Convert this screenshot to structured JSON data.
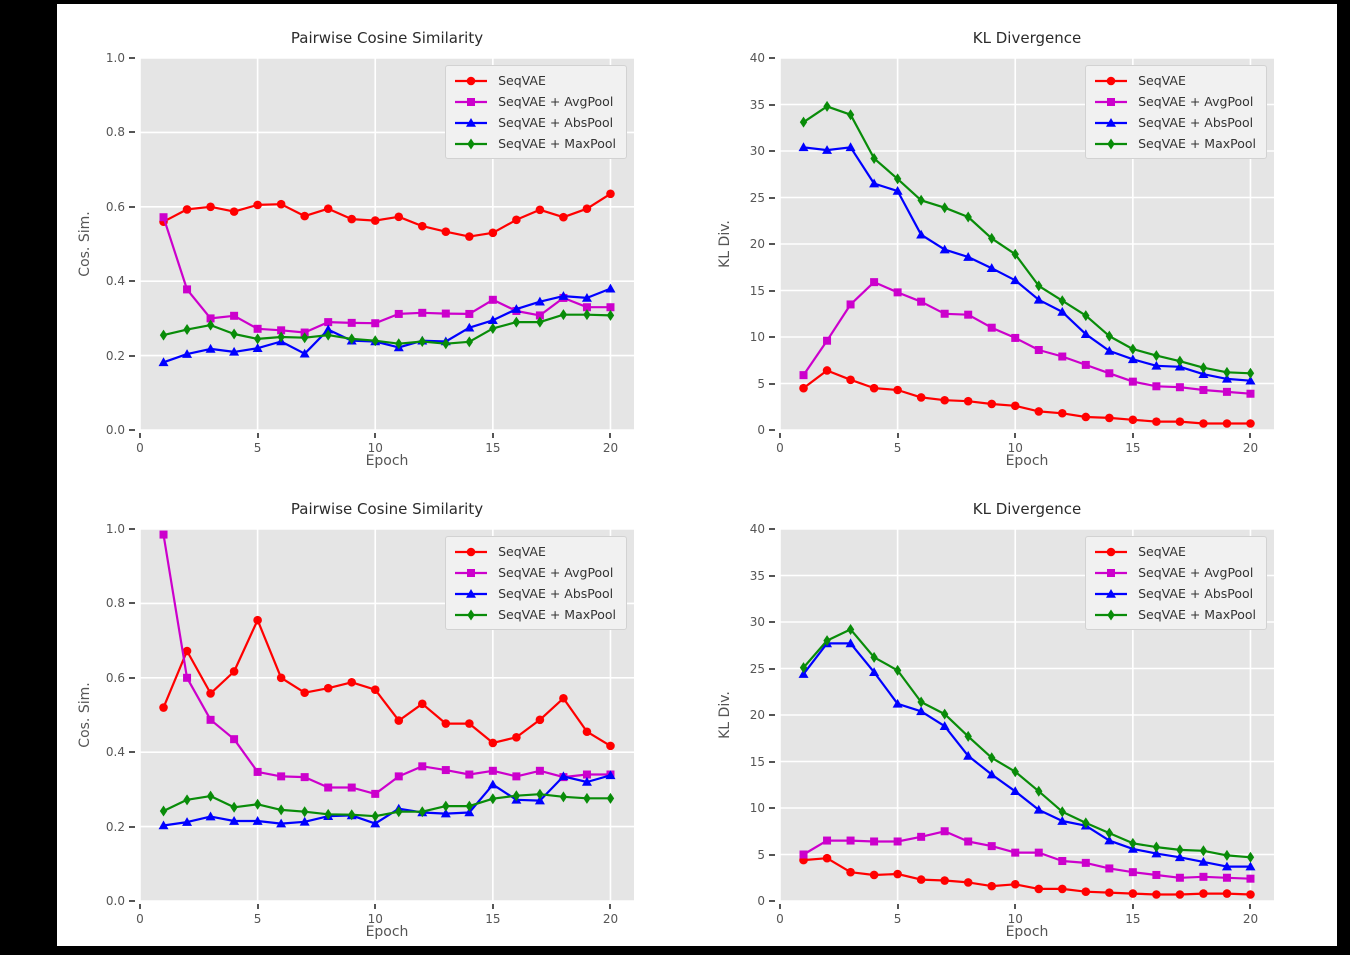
{
  "page": {
    "frame_color": "#000000",
    "canvas_color": "#ffffff",
    "plot_background": "#e5e5e5",
    "grid_color": "#ffffff",
    "tick_color": "#555555",
    "title_color": "#2b2b2b"
  },
  "chart_data": [
    {
      "type": "line",
      "title": "Pairwise Cosine Similarity",
      "xlabel": "Epoch",
      "ylabel": "Cos. Sim.",
      "xlim": [
        0,
        21
      ],
      "ylim": [
        0,
        1.0
      ],
      "grid": true,
      "legend_position": "upper right",
      "xticks": [
        {
          "v": 0,
          "label": "0"
        },
        {
          "v": 5,
          "label": "5"
        },
        {
          "v": 10,
          "label": "10"
        },
        {
          "v": 15,
          "label": "15"
        },
        {
          "v": 20,
          "label": "20"
        }
      ],
      "yticks": [
        {
          "v": 0,
          "label": "0.0"
        },
        {
          "v": 0.2,
          "label": "0.2"
        },
        {
          "v": 0.4,
          "label": "0.4"
        },
        {
          "v": 0.6,
          "label": "0.6"
        },
        {
          "v": 0.8,
          "label": "0.8"
        },
        {
          "v": 1.0,
          "label": "1.0"
        }
      ],
      "x": [
        1,
        2,
        3,
        4,
        5,
        6,
        7,
        8,
        9,
        10,
        11,
        12,
        13,
        14,
        15,
        16,
        17,
        18,
        19,
        20
      ],
      "series": [
        {
          "name": "SeqVAE",
          "color": "#ff0000",
          "marker": "circle",
          "values": [
            0.56,
            0.593,
            0.6,
            0.587,
            0.605,
            0.607,
            0.575,
            0.595,
            0.567,
            0.563,
            0.573,
            0.548,
            0.533,
            0.52,
            0.53,
            0.565,
            0.592,
            0.572,
            0.595,
            0.635
          ]
        },
        {
          "name": "SeqVAE + AvgPool",
          "color": "#cc00cc",
          "marker": "square",
          "values": [
            0.572,
            0.378,
            0.3,
            0.307,
            0.272,
            0.268,
            0.262,
            0.29,
            0.288,
            0.287,
            0.312,
            0.315,
            0.313,
            0.312,
            0.35,
            0.32,
            0.308,
            0.355,
            0.33,
            0.33
          ]
        },
        {
          "name": "SeqVAE + AbsPool",
          "color": "#0000ff",
          "marker": "triangle",
          "values": [
            0.182,
            0.204,
            0.218,
            0.21,
            0.22,
            0.238,
            0.205,
            0.27,
            0.24,
            0.238,
            0.222,
            0.24,
            0.238,
            0.275,
            0.295,
            0.325,
            0.345,
            0.36,
            0.355,
            0.38
          ]
        },
        {
          "name": "SeqVAE + MaxPool",
          "color": "#098c09",
          "marker": "diamond",
          "values": [
            0.255,
            0.27,
            0.282,
            0.258,
            0.245,
            0.25,
            0.248,
            0.255,
            0.245,
            0.24,
            0.232,
            0.238,
            0.232,
            0.237,
            0.273,
            0.29,
            0.29,
            0.31,
            0.31,
            0.308
          ]
        }
      ]
    },
    {
      "type": "line",
      "title": "KL Divergence",
      "xlabel": "Epoch",
      "ylabel": "KL Div.",
      "xlim": [
        0,
        21
      ],
      "ylim": [
        0,
        40
      ],
      "grid": true,
      "legend_position": "upper right",
      "xticks": [
        {
          "v": 0,
          "label": "0"
        },
        {
          "v": 5,
          "label": "5"
        },
        {
          "v": 10,
          "label": "10"
        },
        {
          "v": 15,
          "label": "15"
        },
        {
          "v": 20,
          "label": "20"
        }
      ],
      "yticks": [
        {
          "v": 0,
          "label": "0"
        },
        {
          "v": 5,
          "label": "5"
        },
        {
          "v": 10,
          "label": "10"
        },
        {
          "v": 15,
          "label": "15"
        },
        {
          "v": 20,
          "label": "20"
        },
        {
          "v": 25,
          "label": "25"
        },
        {
          "v": 30,
          "label": "30"
        },
        {
          "v": 35,
          "label": "35"
        },
        {
          "v": 40,
          "label": "40"
        }
      ],
      "x": [
        1,
        2,
        3,
        4,
        5,
        6,
        7,
        8,
        9,
        10,
        11,
        12,
        13,
        14,
        15,
        16,
        17,
        18,
        19,
        20
      ],
      "series": [
        {
          "name": "SeqVAE",
          "color": "#ff0000",
          "marker": "circle",
          "values": [
            4.5,
            6.4,
            5.4,
            4.5,
            4.3,
            3.5,
            3.2,
            3.1,
            2.8,
            2.6,
            2.0,
            1.8,
            1.4,
            1.3,
            1.1,
            0.9,
            0.9,
            0.7,
            0.7,
            0.7
          ]
        },
        {
          "name": "SeqVAE + AvgPool",
          "color": "#cc00cc",
          "marker": "square",
          "values": [
            5.9,
            9.6,
            13.5,
            15.9,
            14.8,
            13.8,
            12.5,
            12.4,
            11.0,
            9.9,
            8.6,
            7.9,
            7.0,
            6.1,
            5.2,
            4.7,
            4.6,
            4.3,
            4.1,
            3.9
          ]
        },
        {
          "name": "SeqVAE + AbsPool",
          "color": "#0000ff",
          "marker": "triangle",
          "values": [
            30.4,
            30.1,
            30.4,
            26.5,
            25.7,
            21.0,
            19.4,
            18.6,
            17.4,
            16.1,
            14.0,
            12.7,
            10.3,
            8.5,
            7.6,
            6.9,
            6.8,
            6.0,
            5.5,
            5.3
          ]
        },
        {
          "name": "SeqVAE + MaxPool",
          "color": "#098c09",
          "marker": "diamond",
          "values": [
            33.1,
            34.8,
            33.9,
            29.2,
            27.0,
            24.7,
            23.9,
            22.9,
            20.6,
            18.9,
            15.5,
            13.9,
            12.3,
            10.1,
            8.7,
            8.0,
            7.4,
            6.7,
            6.2,
            6.1
          ]
        }
      ]
    },
    {
      "type": "line",
      "title": "Pairwise Cosine Similarity",
      "xlabel": "Epoch",
      "ylabel": "Cos. Sim.",
      "xlim": [
        0,
        21
      ],
      "ylim": [
        0,
        1.0
      ],
      "grid": true,
      "legend_position": "upper right",
      "xticks": [
        {
          "v": 0,
          "label": "0"
        },
        {
          "v": 5,
          "label": "5"
        },
        {
          "v": 10,
          "label": "10"
        },
        {
          "v": 15,
          "label": "15"
        },
        {
          "v": 20,
          "label": "20"
        }
      ],
      "yticks": [
        {
          "v": 0,
          "label": "0.0"
        },
        {
          "v": 0.2,
          "label": "0.2"
        },
        {
          "v": 0.4,
          "label": "0.4"
        },
        {
          "v": 0.6,
          "label": "0.6"
        },
        {
          "v": 0.8,
          "label": "0.8"
        },
        {
          "v": 1.0,
          "label": "1.0"
        }
      ],
      "x": [
        1,
        2,
        3,
        4,
        5,
        6,
        7,
        8,
        9,
        10,
        11,
        12,
        13,
        14,
        15,
        16,
        17,
        18,
        19,
        20
      ],
      "series": [
        {
          "name": "SeqVAE",
          "color": "#ff0000",
          "marker": "circle",
          "values": [
            0.52,
            0.672,
            0.558,
            0.617,
            0.755,
            0.6,
            0.56,
            0.572,
            0.588,
            0.568,
            0.485,
            0.53,
            0.477,
            0.477,
            0.425,
            0.44,
            0.487,
            0.545,
            0.455,
            0.417
          ]
        },
        {
          "name": "SeqVAE + AvgPool",
          "color": "#cc00cc",
          "marker": "square",
          "values": [
            0.985,
            0.6,
            0.487,
            0.435,
            0.347,
            0.335,
            0.333,
            0.305,
            0.305,
            0.288,
            0.335,
            0.362,
            0.352,
            0.34,
            0.35,
            0.335,
            0.35,
            0.333,
            0.34,
            0.34
          ]
        },
        {
          "name": "SeqVAE + AbsPool",
          "color": "#0000ff",
          "marker": "triangle",
          "values": [
            0.203,
            0.212,
            0.227,
            0.215,
            0.215,
            0.208,
            0.213,
            0.228,
            0.23,
            0.208,
            0.248,
            0.238,
            0.235,
            0.238,
            0.313,
            0.272,
            0.27,
            0.335,
            0.32,
            0.338
          ]
        },
        {
          "name": "SeqVAE + MaxPool",
          "color": "#098c09",
          "marker": "diamond",
          "values": [
            0.242,
            0.272,
            0.282,
            0.252,
            0.26,
            0.245,
            0.24,
            0.233,
            0.232,
            0.228,
            0.24,
            0.24,
            0.255,
            0.255,
            0.275,
            0.283,
            0.287,
            0.28,
            0.276,
            0.276
          ]
        }
      ]
    },
    {
      "type": "line",
      "title": "KL Divergence",
      "xlabel": "Epoch",
      "ylabel": "KL Div.",
      "xlim": [
        0,
        21
      ],
      "ylim": [
        0,
        40
      ],
      "grid": true,
      "legend_position": "upper right",
      "xticks": [
        {
          "v": 0,
          "label": "0"
        },
        {
          "v": 5,
          "label": "5"
        },
        {
          "v": 10,
          "label": "10"
        },
        {
          "v": 15,
          "label": "15"
        },
        {
          "v": 20,
          "label": "20"
        }
      ],
      "yticks": [
        {
          "v": 0,
          "label": "0"
        },
        {
          "v": 5,
          "label": "5"
        },
        {
          "v": 10,
          "label": "10"
        },
        {
          "v": 15,
          "label": "15"
        },
        {
          "v": 20,
          "label": "20"
        },
        {
          "v": 25,
          "label": "25"
        },
        {
          "v": 30,
          "label": "30"
        },
        {
          "v": 35,
          "label": "35"
        },
        {
          "v": 40,
          "label": "40"
        }
      ],
      "x": [
        1,
        2,
        3,
        4,
        5,
        6,
        7,
        8,
        9,
        10,
        11,
        12,
        13,
        14,
        15,
        16,
        17,
        18,
        19,
        20
      ],
      "series": [
        {
          "name": "SeqVAE",
          "color": "#ff0000",
          "marker": "circle",
          "values": [
            4.4,
            4.6,
            3.1,
            2.8,
            2.9,
            2.3,
            2.2,
            2.0,
            1.6,
            1.8,
            1.3,
            1.3,
            1.0,
            0.9,
            0.8,
            0.7,
            0.7,
            0.8,
            0.8,
            0.7
          ]
        },
        {
          "name": "SeqVAE + AvgPool",
          "color": "#cc00cc",
          "marker": "square",
          "values": [
            5.0,
            6.5,
            6.5,
            6.4,
            6.4,
            6.9,
            7.5,
            6.4,
            5.9,
            5.2,
            5.2,
            4.3,
            4.1,
            3.5,
            3.1,
            2.8,
            2.5,
            2.6,
            2.5,
            2.4
          ]
        },
        {
          "name": "SeqVAE + AbsPool",
          "color": "#0000ff",
          "marker": "triangle",
          "values": [
            24.4,
            27.7,
            27.7,
            24.6,
            21.2,
            20.4,
            18.8,
            15.6,
            13.6,
            11.8,
            9.8,
            8.6,
            8.1,
            6.5,
            5.6,
            5.1,
            4.7,
            4.2,
            3.7,
            3.7
          ]
        },
        {
          "name": "SeqVAE + MaxPool",
          "color": "#098c09",
          "marker": "diamond",
          "values": [
            25.1,
            28.0,
            29.2,
            26.2,
            24.8,
            21.4,
            20.1,
            17.7,
            15.4,
            13.9,
            11.8,
            9.6,
            8.4,
            7.3,
            6.2,
            5.8,
            5.5,
            5.4,
            4.9,
            4.7
          ]
        }
      ]
    }
  ]
}
